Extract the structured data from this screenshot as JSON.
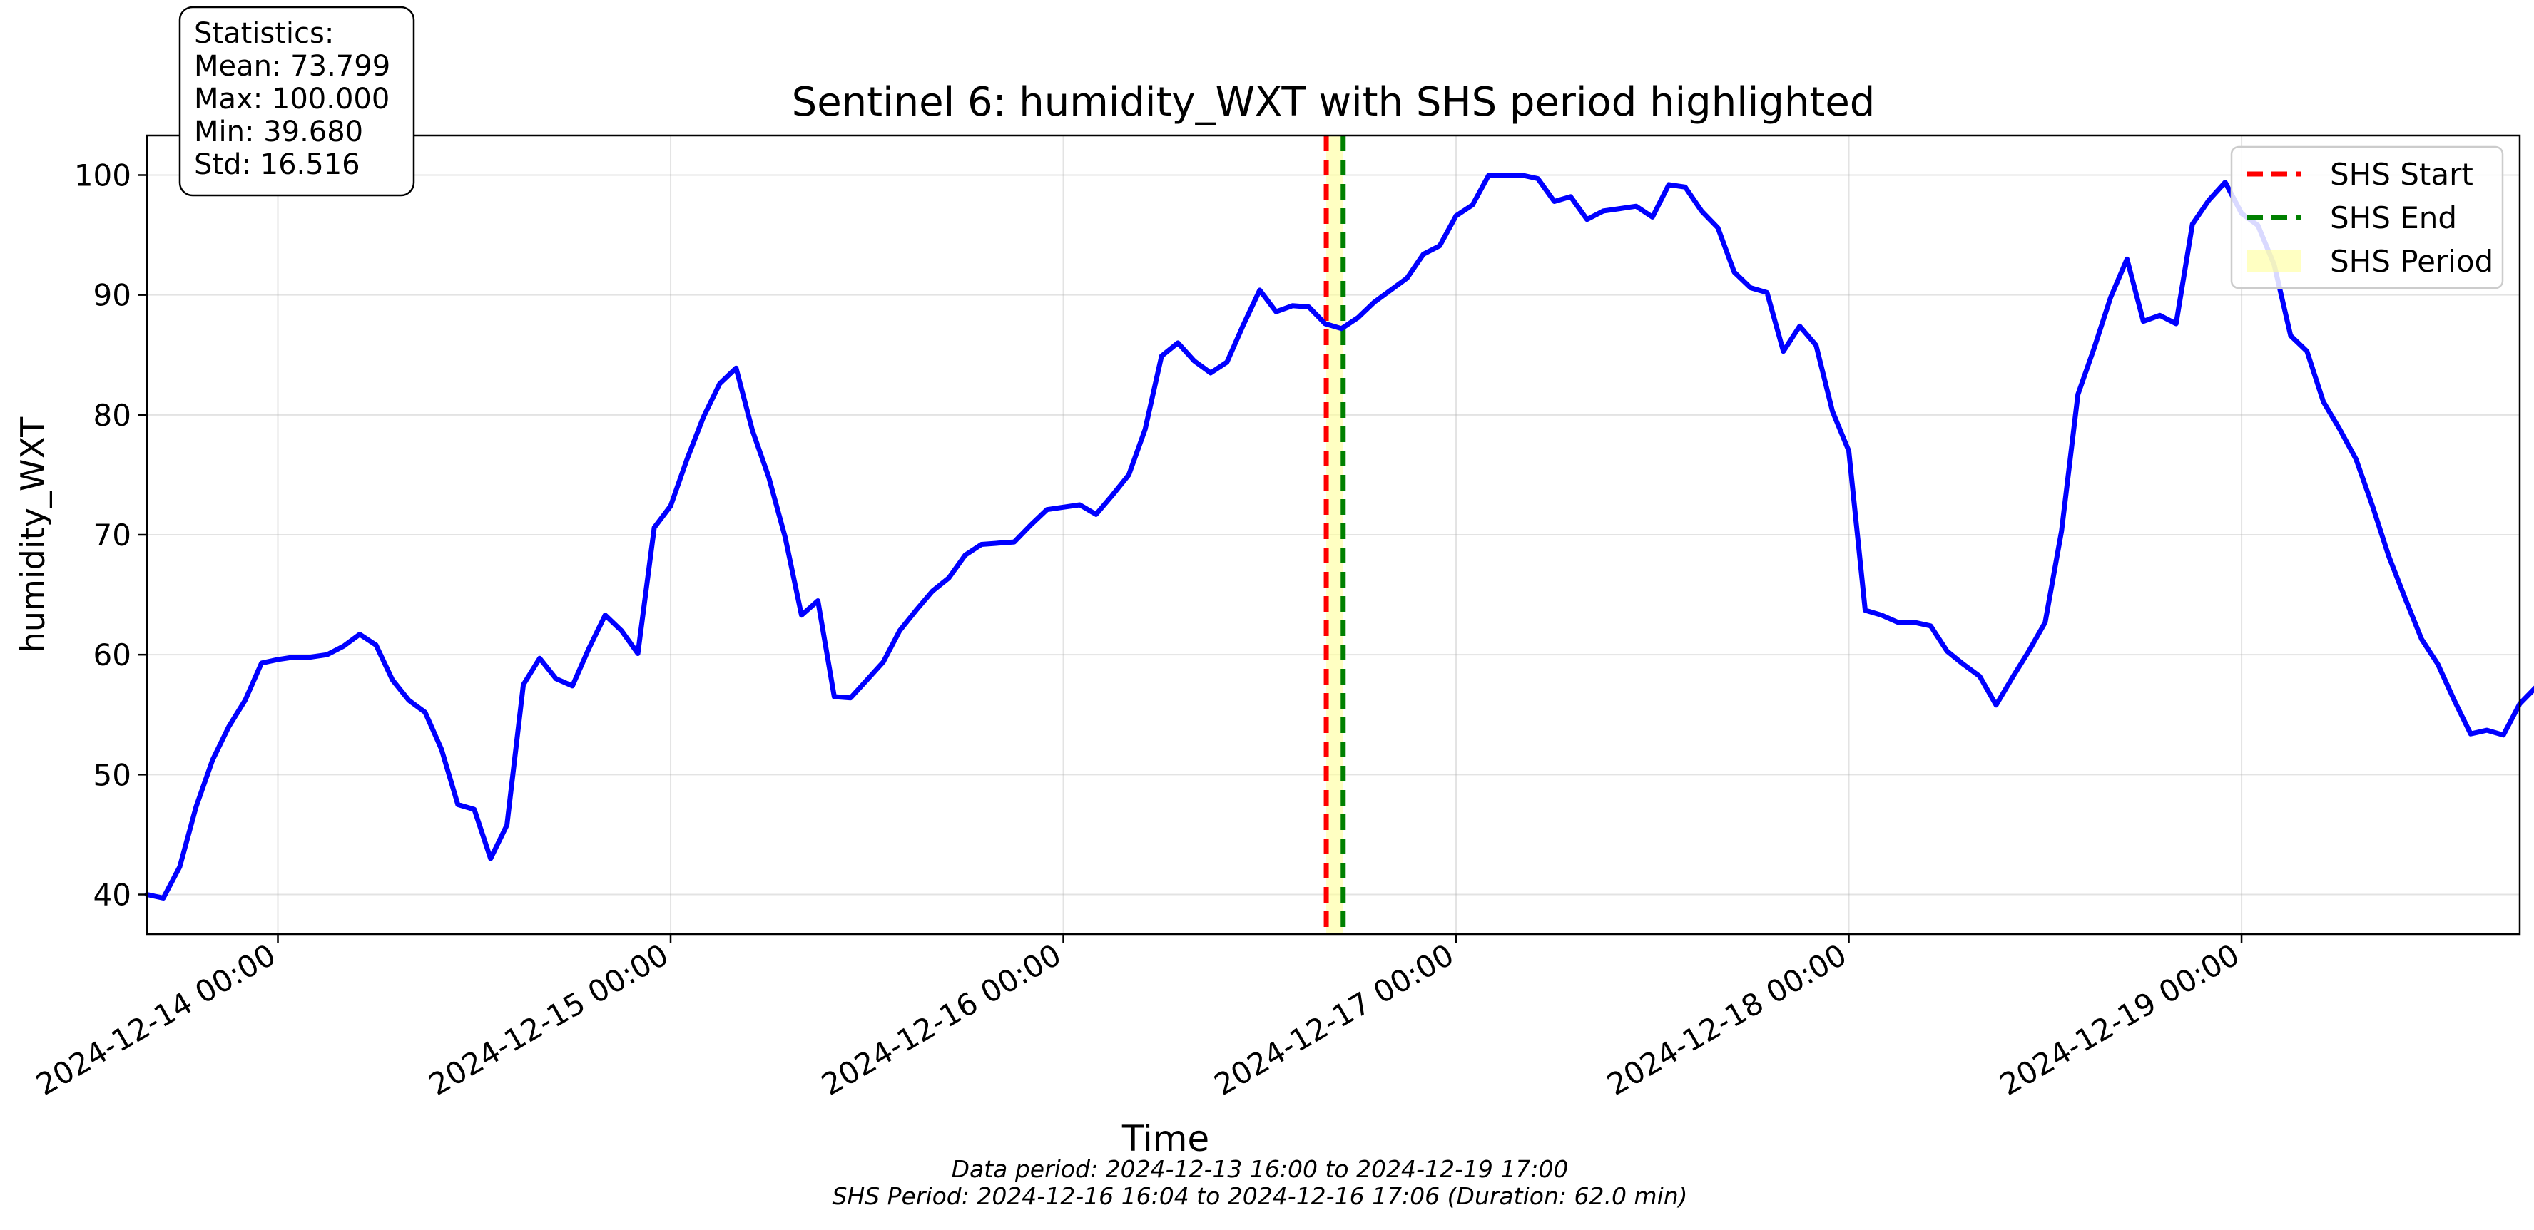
{
  "chart_data": {
    "type": "line",
    "title": "Sentinel 6: humidity_WXT with SHS period highlighted",
    "xlabel": "Time",
    "ylabel": "humidity_WXT",
    "xlim": [
      "2024-12-13 16:00",
      "2024-12-19 17:00"
    ],
    "ylim": [
      36.7,
      103.3
    ],
    "x_ticks": [
      "2024-12-14 00:00",
      "2024-12-15 00:00",
      "2024-12-16 00:00",
      "2024-12-17 00:00",
      "2024-12-18 00:00",
      "2024-12-19 00:00"
    ],
    "y_ticks": [
      40,
      50,
      60,
      70,
      80,
      90,
      100
    ],
    "grid": true,
    "legend_position": "top-right",
    "legend": [
      {
        "label": "SHS Start",
        "color": "#ff0000",
        "style": "dashed"
      },
      {
        "label": "SHS End",
        "color": "#008000",
        "style": "dashed"
      },
      {
        "label": "SHS Period",
        "color": "#ffff99",
        "style": "fill"
      }
    ],
    "series": [
      {
        "color": "#0000ff",
        "points": [
          [
            "2024-12-13 16:00",
            40.0
          ],
          [
            "2024-12-13 17:00",
            39.7
          ],
          [
            "2024-12-13 18:00",
            42.3
          ],
          [
            "2024-12-13 19:00",
            47.3
          ],
          [
            "2024-12-13 20:00",
            51.2
          ],
          [
            "2024-12-13 21:00",
            54.0
          ],
          [
            "2024-12-13 22:00",
            56.2
          ],
          [
            "2024-12-13 23:00",
            59.3
          ],
          [
            "2024-12-14 00:00",
            59.6
          ],
          [
            "2024-12-14 01:00",
            59.8
          ],
          [
            "2024-12-14 02:00",
            59.8
          ],
          [
            "2024-12-14 03:00",
            60.0
          ],
          [
            "2024-12-14 04:00",
            60.7
          ],
          [
            "2024-12-14 05:00",
            61.7
          ],
          [
            "2024-12-14 06:00",
            60.8
          ],
          [
            "2024-12-14 07:00",
            57.9
          ],
          [
            "2024-12-14 08:00",
            56.2
          ],
          [
            "2024-12-14 09:00",
            55.2
          ],
          [
            "2024-12-14 10:00",
            52.1
          ],
          [
            "2024-12-14 11:00",
            47.5
          ],
          [
            "2024-12-14 12:00",
            47.1
          ],
          [
            "2024-12-14 13:00",
            43.0
          ],
          [
            "2024-12-14 14:00",
            45.8
          ],
          [
            "2024-12-14 15:00",
            57.5
          ],
          [
            "2024-12-14 16:00",
            59.7
          ],
          [
            "2024-12-14 17:00",
            58.0
          ],
          [
            "2024-12-14 18:00",
            57.4
          ],
          [
            "2024-12-14 19:00",
            60.5
          ],
          [
            "2024-12-14 20:00",
            63.3
          ],
          [
            "2024-12-14 21:00",
            62.0
          ],
          [
            "2024-12-14 22:00",
            60.1
          ],
          [
            "2024-12-14 23:00",
            70.6
          ],
          [
            "2024-12-15 00:00",
            72.4
          ],
          [
            "2024-12-15 01:00",
            76.3
          ],
          [
            "2024-12-15 02:00",
            79.8
          ],
          [
            "2024-12-15 03:00",
            82.6
          ],
          [
            "2024-12-15 04:00",
            83.9
          ],
          [
            "2024-12-15 05:00",
            78.7
          ],
          [
            "2024-12-15 06:00",
            74.8
          ],
          [
            "2024-12-15 07:00",
            69.8
          ],
          [
            "2024-12-15 08:00",
            63.3
          ],
          [
            "2024-12-15 09:00",
            64.5
          ],
          [
            "2024-12-15 10:00",
            56.5
          ],
          [
            "2024-12-15 11:00",
            56.4
          ],
          [
            "2024-12-15 12:00",
            57.9
          ],
          [
            "2024-12-15 13:00",
            59.4
          ],
          [
            "2024-12-15 14:00",
            62.0
          ],
          [
            "2024-12-15 15:00",
            63.7
          ],
          [
            "2024-12-15 16:00",
            65.3
          ],
          [
            "2024-12-15 17:00",
            66.4
          ],
          [
            "2024-12-15 18:00",
            68.3
          ],
          [
            "2024-12-15 19:00",
            69.2
          ],
          [
            "2024-12-15 20:00",
            69.3
          ],
          [
            "2024-12-15 21:00",
            69.4
          ],
          [
            "2024-12-15 22:00",
            70.8
          ],
          [
            "2024-12-15 23:00",
            72.1
          ],
          [
            "2024-12-16 00:00",
            72.3
          ],
          [
            "2024-12-16 01:00",
            72.5
          ],
          [
            "2024-12-16 02:00",
            71.7
          ],
          [
            "2024-12-16 03:00",
            73.3
          ],
          [
            "2024-12-16 04:00",
            75.0
          ],
          [
            "2024-12-16 05:00",
            78.8
          ],
          [
            "2024-12-16 06:00",
            84.9
          ],
          [
            "2024-12-16 07:00",
            86.0
          ],
          [
            "2024-12-16 08:00",
            84.5
          ],
          [
            "2024-12-16 09:00",
            83.5
          ],
          [
            "2024-12-16 10:00",
            84.4
          ],
          [
            "2024-12-16 11:00",
            87.5
          ],
          [
            "2024-12-16 12:00",
            90.4
          ],
          [
            "2024-12-16 13:00",
            88.6
          ],
          [
            "2024-12-16 14:00",
            89.1
          ],
          [
            "2024-12-16 15:00",
            89.0
          ],
          [
            "2024-12-16 16:00",
            87.6
          ],
          [
            "2024-12-16 17:00",
            87.2
          ],
          [
            "2024-12-16 18:00",
            88.1
          ],
          [
            "2024-12-16 19:00",
            89.4
          ],
          [
            "2024-12-16 20:00",
            90.4
          ],
          [
            "2024-12-16 21:00",
            91.4
          ],
          [
            "2024-12-16 22:00",
            93.4
          ],
          [
            "2024-12-16 23:00",
            94.1
          ],
          [
            "2024-12-17 00:00",
            96.6
          ],
          [
            "2024-12-17 01:00",
            97.5
          ],
          [
            "2024-12-17 02:00",
            100.0
          ],
          [
            "2024-12-17 03:00",
            100.0
          ],
          [
            "2024-12-17 04:00",
            100.0
          ],
          [
            "2024-12-17 05:00",
            99.7
          ],
          [
            "2024-12-17 06:00",
            97.8
          ],
          [
            "2024-12-17 07:00",
            98.2
          ],
          [
            "2024-12-17 08:00",
            96.3
          ],
          [
            "2024-12-17 09:00",
            97.0
          ],
          [
            "2024-12-17 10:00",
            97.2
          ],
          [
            "2024-12-17 11:00",
            97.4
          ],
          [
            "2024-12-17 12:00",
            96.5
          ],
          [
            "2024-12-17 13:00",
            99.2
          ],
          [
            "2024-12-17 14:00",
            99.0
          ],
          [
            "2024-12-17 15:00",
            97.0
          ],
          [
            "2024-12-17 16:00",
            95.6
          ],
          [
            "2024-12-17 17:00",
            91.9
          ],
          [
            "2024-12-17 18:00",
            90.6
          ],
          [
            "2024-12-17 19:00",
            90.2
          ],
          [
            "2024-12-17 20:00",
            85.3
          ],
          [
            "2024-12-17 21:00",
            87.4
          ],
          [
            "2024-12-17 22:00",
            85.8
          ],
          [
            "2024-12-17 23:00",
            80.3
          ],
          [
            "2024-12-18 00:00",
            77.0
          ],
          [
            "2024-12-18 01:00",
            63.7
          ],
          [
            "2024-12-18 02:00",
            63.3
          ],
          [
            "2024-12-18 03:00",
            62.7
          ],
          [
            "2024-12-18 04:00",
            62.7
          ],
          [
            "2024-12-18 05:00",
            62.4
          ],
          [
            "2024-12-18 06:00",
            60.3
          ],
          [
            "2024-12-18 07:00",
            59.2
          ],
          [
            "2024-12-18 08:00",
            58.2
          ],
          [
            "2024-12-18 09:00",
            55.8
          ],
          [
            "2024-12-18 10:00",
            58.1
          ],
          [
            "2024-12-18 11:00",
            60.3
          ],
          [
            "2024-12-18 12:00",
            62.7
          ],
          [
            "2024-12-18 13:00",
            70.3
          ],
          [
            "2024-12-18 14:00",
            81.7
          ],
          [
            "2024-12-18 15:00",
            85.6
          ],
          [
            "2024-12-18 16:00",
            89.8
          ],
          [
            "2024-12-18 17:00",
            93.0
          ],
          [
            "2024-12-18 18:00",
            87.8
          ],
          [
            "2024-12-18 19:00",
            88.3
          ],
          [
            "2024-12-18 20:00",
            87.6
          ],
          [
            "2024-12-18 21:00",
            95.9
          ],
          [
            "2024-12-18 22:00",
            97.9
          ],
          [
            "2024-12-18 23:00",
            99.4
          ],
          [
            "2024-12-19 00:00",
            96.8
          ],
          [
            "2024-12-19 01:00",
            95.8
          ],
          [
            "2024-12-19 02:00",
            92.5
          ],
          [
            "2024-12-19 03:00",
            86.6
          ],
          [
            "2024-12-19 04:00",
            85.3
          ],
          [
            "2024-12-19 05:00",
            81.1
          ],
          [
            "2024-12-19 06:00",
            78.8
          ],
          [
            "2024-12-19 07:00",
            76.3
          ],
          [
            "2024-12-19 08:00",
            72.4
          ],
          [
            "2024-12-19 09:00",
            68.2
          ],
          [
            "2024-12-19 10:00",
            64.7
          ],
          [
            "2024-12-19 11:00",
            61.3
          ],
          [
            "2024-12-19 12:00",
            59.2
          ],
          [
            "2024-12-19 13:00",
            56.2
          ],
          [
            "2024-12-19 14:00",
            53.4
          ],
          [
            "2024-12-19 15:00",
            53.7
          ],
          [
            "2024-12-19 16:00",
            53.3
          ],
          [
            "2024-12-19 17:00",
            55.9
          ],
          [
            "2024-12-19 18:00",
            57.3
          ]
        ]
      }
    ],
    "shs_period": {
      "start": "2024-12-16 16:04",
      "end": "2024-12-16 17:06"
    },
    "statistics_box": {
      "lines": [
        "Statistics:",
        "Mean: 73.799",
        "Max: 100.000",
        "Min: 39.680",
        "Std: 16.516"
      ]
    },
    "footnotes": [
      "Data period: 2024-12-13 16:00 to 2024-12-19 17:00",
      "SHS Period: 2024-12-16 16:04 to 2024-12-16 17:06 (Duration: 62.0 min)"
    ]
  }
}
